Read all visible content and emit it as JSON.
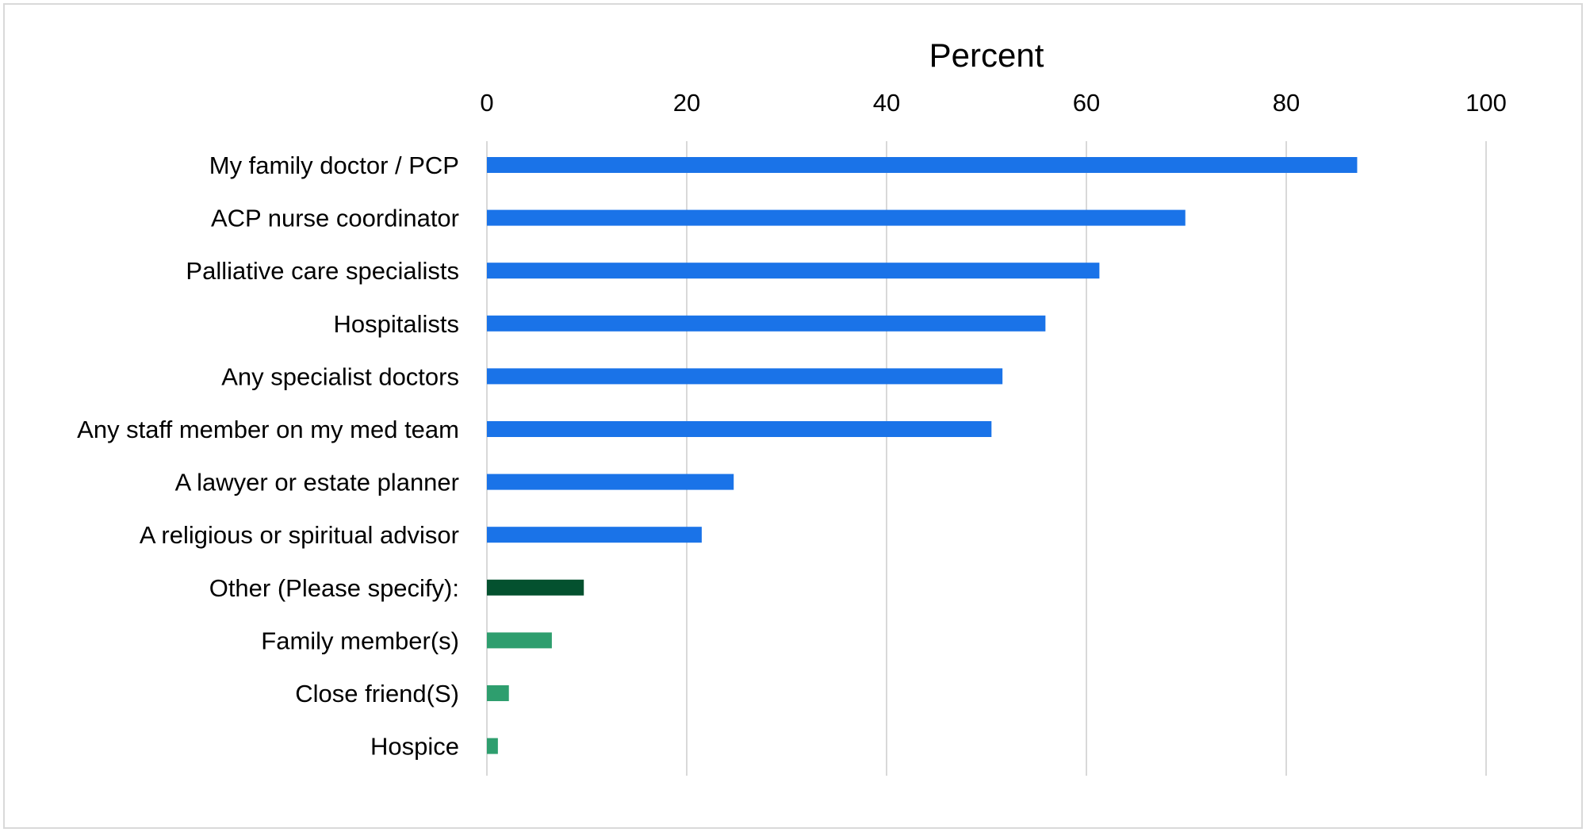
{
  "chart_data": {
    "type": "bar",
    "orientation": "horizontal",
    "title": "",
    "xlabel": "Percent",
    "ylabel": "",
    "xlim": [
      0,
      100
    ],
    "x_ticks": [
      0,
      20,
      40,
      60,
      80,
      100
    ],
    "x_axis_position": "top",
    "grid": true,
    "legend": "none",
    "categories": [
      "My family doctor / PCP",
      "ACP nurse coordinator",
      "Palliative care specialists",
      "Hospitalists",
      "Any specialist doctors",
      "Any staff member on my med team",
      "A lawyer or estate planner",
      "A religious or spiritual advisor",
      "Other (Please specify):",
      "Family member(s)",
      "Close friend(S)",
      "Hospice"
    ],
    "values": [
      87.1,
      69.9,
      61.3,
      55.9,
      51.6,
      50.5,
      24.7,
      21.5,
      9.7,
      6.5,
      2.2,
      1.1
    ],
    "bar_colors": [
      "#1a73e8",
      "#1a73e8",
      "#1a73e8",
      "#1a73e8",
      "#1a73e8",
      "#1a73e8",
      "#1a73e8",
      "#1a73e8",
      "#04512f",
      "#2e9e6e",
      "#2e9e6e",
      "#2e9e6e"
    ]
  },
  "colors": {
    "gridline": "#d9d9d9",
    "frame": "#d9d9d9",
    "text": "#000000"
  }
}
